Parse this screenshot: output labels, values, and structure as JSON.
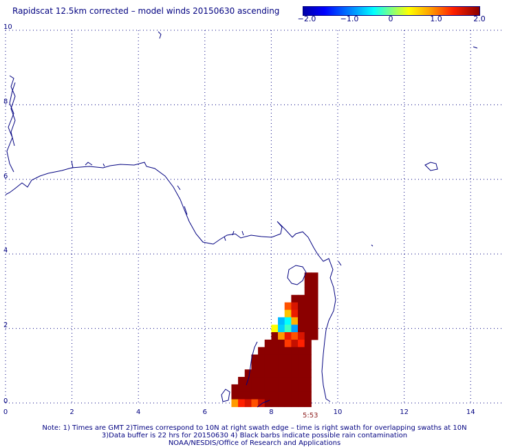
{
  "title": "Rapidscat 12.5km corrected – model winds 20150630 ascending",
  "colorbar": {
    "min": -2.0,
    "max": 2.0,
    "tick_labels": [
      "−2.0",
      "−1.0",
      "0",
      "1.0",
      "2.0"
    ],
    "tick_values": [
      -2.0,
      -1.0,
      0,
      1.0,
      2.0
    ]
  },
  "axes": {
    "x_ticks": [
      "0",
      "2",
      "4",
      "6",
      "8",
      "10",
      "12",
      "14"
    ],
    "y_ticks": [
      "0",
      "2",
      "4",
      "6",
      "8",
      "10"
    ],
    "xlim": [
      0,
      15
    ],
    "ylim": [
      0,
      10
    ],
    "grid": true
  },
  "swath_time": "5:53",
  "notes": {
    "line1": "Note: 1) Times are GMT 2)Times correspond to 10N at right swath edge – time is right swath for overlapping swaths at 10N",
    "line2": "3)Data buffer is 22 hrs for 20150630 4) Black barbs indicate possible rain contamination",
    "line3": "NOAA/NESDIS/Office of Research and Applications"
  },
  "colors": {
    "text": "#000080",
    "coastline": "#000080",
    "grid": "#000080",
    "data_max": "#8b0000",
    "time_label": "#8b1a1a"
  },
  "swath_cells": [
    {
      "x": 9.1,
      "y": 3.4,
      "value": 2.0
    },
    {
      "x": 9.3,
      "y": 3.4,
      "value": 2.0
    },
    {
      "x": 9.1,
      "y": 3.2,
      "value": 2.0
    },
    {
      "x": 9.3,
      "y": 3.2,
      "value": 2.0
    },
    {
      "x": 9.1,
      "y": 3.0,
      "value": 2.0
    },
    {
      "x": 9.3,
      "y": 3.0,
      "value": 2.0
    },
    {
      "x": 8.7,
      "y": 2.8,
      "value": 2.0
    },
    {
      "x": 8.9,
      "y": 2.8,
      "value": 2.0
    },
    {
      "x": 9.1,
      "y": 2.8,
      "value": 2.0
    },
    {
      "x": 9.3,
      "y": 2.8,
      "value": 2.0
    },
    {
      "x": 8.5,
      "y": 2.6,
      "value": 1.2
    },
    {
      "x": 8.7,
      "y": 2.6,
      "value": 1.6
    },
    {
      "x": 8.9,
      "y": 2.6,
      "value": 2.0
    },
    {
      "x": 9.1,
      "y": 2.6,
      "value": 2.0
    },
    {
      "x": 9.3,
      "y": 2.6,
      "value": 2.0
    },
    {
      "x": 8.5,
      "y": 2.4,
      "value": 0.7
    },
    {
      "x": 8.7,
      "y": 2.4,
      "value": 1.5
    },
    {
      "x": 8.9,
      "y": 2.4,
      "value": 2.0
    },
    {
      "x": 9.1,
      "y": 2.4,
      "value": 2.0
    },
    {
      "x": 9.3,
      "y": 2.4,
      "value": 2.0
    },
    {
      "x": 8.3,
      "y": 2.2,
      "value": -0.7
    },
    {
      "x": 8.5,
      "y": 2.2,
      "value": -0.4
    },
    {
      "x": 8.7,
      "y": 2.2,
      "value": 0.8
    },
    {
      "x": 8.9,
      "y": 2.2,
      "value": 2.0
    },
    {
      "x": 9.1,
      "y": 2.2,
      "value": 2.0
    },
    {
      "x": 9.3,
      "y": 2.2,
      "value": 2.0
    },
    {
      "x": 8.1,
      "y": 2.0,
      "value": 0.4
    },
    {
      "x": 8.3,
      "y": 2.0,
      "value": -0.6
    },
    {
      "x": 8.5,
      "y": 2.0,
      "value": -0.2
    },
    {
      "x": 8.7,
      "y": 2.0,
      "value": -0.8
    },
    {
      "x": 8.9,
      "y": 2.0,
      "value": 2.0
    },
    {
      "x": 9.1,
      "y": 2.0,
      "value": 2.0
    },
    {
      "x": 9.3,
      "y": 2.0,
      "value": 2.0
    },
    {
      "x": 8.1,
      "y": 1.8,
      "value": 2.0
    },
    {
      "x": 8.3,
      "y": 1.8,
      "value": 0.9
    },
    {
      "x": 8.5,
      "y": 1.8,
      "value": 1.5
    },
    {
      "x": 8.7,
      "y": 1.8,
      "value": 1.2
    },
    {
      "x": 8.9,
      "y": 1.8,
      "value": 1.6
    },
    {
      "x": 9.1,
      "y": 1.8,
      "value": 2.0
    },
    {
      "x": 9.3,
      "y": 1.8,
      "value": 2.0
    },
    {
      "x": 7.9,
      "y": 1.6,
      "value": 2.0
    },
    {
      "x": 8.1,
      "y": 1.6,
      "value": 2.0
    },
    {
      "x": 8.3,
      "y": 1.6,
      "value": 2.0
    },
    {
      "x": 8.5,
      "y": 1.6,
      "value": 1.3
    },
    {
      "x": 8.7,
      "y": 1.6,
      "value": 1.7
    },
    {
      "x": 8.9,
      "y": 1.6,
      "value": 1.4
    },
    {
      "x": 9.1,
      "y": 1.6,
      "value": 2.0
    },
    {
      "x": 7.7,
      "y": 1.4,
      "value": 2.0
    },
    {
      "x": 7.9,
      "y": 1.4,
      "value": 2.0
    },
    {
      "x": 8.1,
      "y": 1.4,
      "value": 2.0
    },
    {
      "x": 8.3,
      "y": 1.4,
      "value": 2.0
    },
    {
      "x": 8.5,
      "y": 1.4,
      "value": 2.0
    },
    {
      "x": 8.7,
      "y": 1.4,
      "value": 2.0
    },
    {
      "x": 8.9,
      "y": 1.4,
      "value": 2.0
    },
    {
      "x": 9.1,
      "y": 1.4,
      "value": 2.0
    },
    {
      "x": 7.5,
      "y": 1.2,
      "value": 2.0
    },
    {
      "x": 7.7,
      "y": 1.2,
      "value": 2.0
    },
    {
      "x": 7.9,
      "y": 1.2,
      "value": 2.0
    },
    {
      "x": 8.1,
      "y": 1.2,
      "value": 2.0
    },
    {
      "x": 8.3,
      "y": 1.2,
      "value": 2.0
    },
    {
      "x": 8.5,
      "y": 1.2,
      "value": 2.0
    },
    {
      "x": 8.7,
      "y": 1.2,
      "value": 2.0
    },
    {
      "x": 8.9,
      "y": 1.2,
      "value": 2.0
    },
    {
      "x": 9.1,
      "y": 1.2,
      "value": 2.0
    },
    {
      "x": 7.5,
      "y": 1.0,
      "value": 2.0
    },
    {
      "x": 7.7,
      "y": 1.0,
      "value": 2.0
    },
    {
      "x": 7.9,
      "y": 1.0,
      "value": 2.0
    },
    {
      "x": 8.1,
      "y": 1.0,
      "value": 2.0
    },
    {
      "x": 8.3,
      "y": 1.0,
      "value": 2.0
    },
    {
      "x": 8.5,
      "y": 1.0,
      "value": 2.0
    },
    {
      "x": 8.7,
      "y": 1.0,
      "value": 2.0
    },
    {
      "x": 8.9,
      "y": 1.0,
      "value": 2.0
    },
    {
      "x": 9.1,
      "y": 1.0,
      "value": 2.0
    },
    {
      "x": 7.3,
      "y": 0.8,
      "value": 2.0
    },
    {
      "x": 7.5,
      "y": 0.8,
      "value": 2.0
    },
    {
      "x": 7.7,
      "y": 0.8,
      "value": 2.0
    },
    {
      "x": 7.9,
      "y": 0.8,
      "value": 2.0
    },
    {
      "x": 8.1,
      "y": 0.8,
      "value": 2.0
    },
    {
      "x": 8.3,
      "y": 0.8,
      "value": 2.0
    },
    {
      "x": 8.5,
      "y": 0.8,
      "value": 2.0
    },
    {
      "x": 8.7,
      "y": 0.8,
      "value": 2.0
    },
    {
      "x": 8.9,
      "y": 0.8,
      "value": 2.0
    },
    {
      "x": 9.1,
      "y": 0.8,
      "value": 2.0
    },
    {
      "x": 7.1,
      "y": 0.6,
      "value": 2.0
    },
    {
      "x": 7.3,
      "y": 0.6,
      "value": 2.0
    },
    {
      "x": 7.5,
      "y": 0.6,
      "value": 2.0
    },
    {
      "x": 7.7,
      "y": 0.6,
      "value": 2.0
    },
    {
      "x": 7.9,
      "y": 0.6,
      "value": 2.0
    },
    {
      "x": 8.1,
      "y": 0.6,
      "value": 2.0
    },
    {
      "x": 8.3,
      "y": 0.6,
      "value": 2.0
    },
    {
      "x": 8.5,
      "y": 0.6,
      "value": 2.0
    },
    {
      "x": 8.7,
      "y": 0.6,
      "value": 2.0
    },
    {
      "x": 8.9,
      "y": 0.6,
      "value": 2.0
    },
    {
      "x": 9.1,
      "y": 0.6,
      "value": 2.0
    },
    {
      "x": 6.9,
      "y": 0.4,
      "value": 2.0
    },
    {
      "x": 7.1,
      "y": 0.4,
      "value": 2.0
    },
    {
      "x": 7.3,
      "y": 0.4,
      "value": 2.0
    },
    {
      "x": 7.5,
      "y": 0.4,
      "value": 2.0
    },
    {
      "x": 7.7,
      "y": 0.4,
      "value": 2.0
    },
    {
      "x": 7.9,
      "y": 0.4,
      "value": 2.0
    },
    {
      "x": 8.1,
      "y": 0.4,
      "value": 2.0
    },
    {
      "x": 8.3,
      "y": 0.4,
      "value": 2.0
    },
    {
      "x": 8.5,
      "y": 0.4,
      "value": 2.0
    },
    {
      "x": 8.7,
      "y": 0.4,
      "value": 2.0
    },
    {
      "x": 8.9,
      "y": 0.4,
      "value": 2.0
    },
    {
      "x": 9.1,
      "y": 0.4,
      "value": 2.0
    },
    {
      "x": 6.9,
      "y": 0.2,
      "value": 2.0
    },
    {
      "x": 7.1,
      "y": 0.2,
      "value": 2.0
    },
    {
      "x": 7.3,
      "y": 0.2,
      "value": 2.0
    },
    {
      "x": 7.5,
      "y": 0.2,
      "value": 2.0
    },
    {
      "x": 7.7,
      "y": 0.2,
      "value": 2.0
    },
    {
      "x": 7.9,
      "y": 0.2,
      "value": 2.0
    },
    {
      "x": 8.1,
      "y": 0.2,
      "value": 2.0
    },
    {
      "x": 8.3,
      "y": 0.2,
      "value": 2.0
    },
    {
      "x": 8.5,
      "y": 0.2,
      "value": 2.0
    },
    {
      "x": 8.7,
      "y": 0.2,
      "value": 2.0
    },
    {
      "x": 8.9,
      "y": 0.2,
      "value": 2.0
    },
    {
      "x": 9.1,
      "y": 0.2,
      "value": 2.0
    },
    {
      "x": 6.9,
      "y": 0.0,
      "value": 0.9
    },
    {
      "x": 7.1,
      "y": 0.0,
      "value": 1.4
    },
    {
      "x": 7.3,
      "y": 0.0,
      "value": 1.6
    },
    {
      "x": 7.5,
      "y": 0.0,
      "value": 1.2
    },
    {
      "x": 7.7,
      "y": 0.0,
      "value": 1.7
    },
    {
      "x": 7.9,
      "y": 0.0,
      "value": 2.0
    },
    {
      "x": 8.1,
      "y": 0.0,
      "value": 2.0
    },
    {
      "x": 8.3,
      "y": 0.0,
      "value": 2.0
    },
    {
      "x": 8.5,
      "y": 0.0,
      "value": 2.0
    },
    {
      "x": 8.7,
      "y": 0.0,
      "value": 2.0
    },
    {
      "x": 8.9,
      "y": 0.0,
      "value": 2.0
    },
    {
      "x": 9.1,
      "y": 0.0,
      "value": 2.0
    }
  ]
}
